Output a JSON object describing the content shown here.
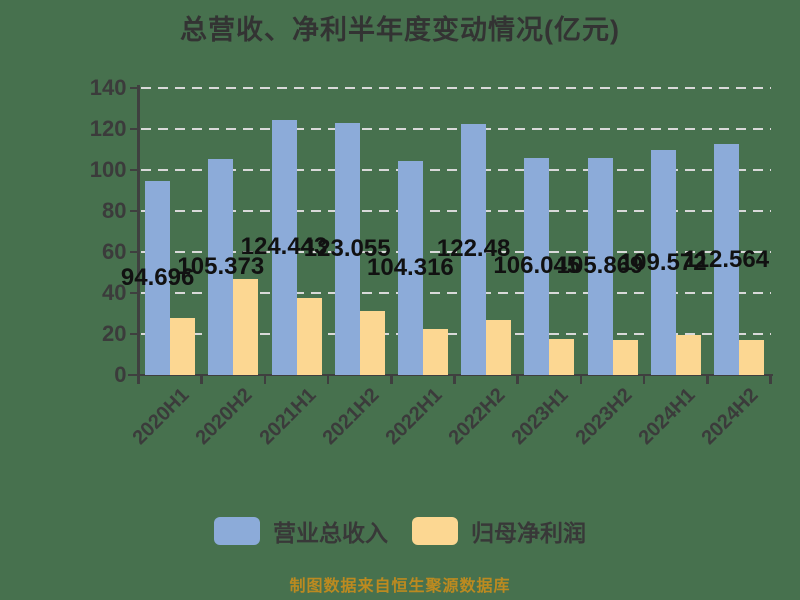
{
  "title": "总营收、净利半年度变动情况(亿元)",
  "caption": "制图数据来自恒生聚源数据库",
  "colors": {
    "background": "#47714E",
    "revenue_bar": "#8CABD9",
    "profit_bar": "#FCD792",
    "gridline": "#D9D9D9",
    "axis": "#3F3F3F",
    "title_text": "#333333",
    "tick_text": "#3B3B3B",
    "value_label_text": "#111111",
    "legend_text": "#383838",
    "caption_text": "#BC8A20"
  },
  "legend": {
    "items": [
      {
        "label": "营业总收入",
        "color_key": "revenue_bar"
      },
      {
        "label": "归母净利润",
        "color_key": "profit_bar"
      }
    ]
  },
  "chart_data": {
    "type": "bar",
    "title": "总营收、净利半年度变动情况(亿元)",
    "categories": [
      "2020H1",
      "2020H2",
      "2021H1",
      "2021H2",
      "2022H1",
      "2022H2",
      "2023H1",
      "2023H2",
      "2024H1",
      "2024H2"
    ],
    "series": [
      {
        "name": "营业总收入",
        "values": [
          94.696,
          105.373,
          124.443,
          123.055,
          104.316,
          122.48,
          106.045,
          105.869,
          109.572,
          112.564
        ],
        "labels": [
          "94.696",
          "105.373",
          "124.443",
          "123.055",
          "104.316",
          "122.48",
          "106.045",
          "105.869",
          "109.572",
          "112.564"
        ],
        "labels_shown": true
      },
      {
        "name": "归母净利润",
        "values": [
          27.9,
          46.9,
          37.5,
          31.2,
          22.6,
          26.9,
          17.5,
          17.2,
          19.4,
          17.3
        ],
        "labels_shown": false,
        "estimated": true
      }
    ],
    "xlabel": "",
    "ylabel": "",
    "ylim": [
      0,
      140
    ],
    "yticks": [
      0,
      20,
      40,
      60,
      80,
      100,
      120,
      140
    ],
    "grid": "horizontal-dashed",
    "legend_position": "bottom"
  }
}
